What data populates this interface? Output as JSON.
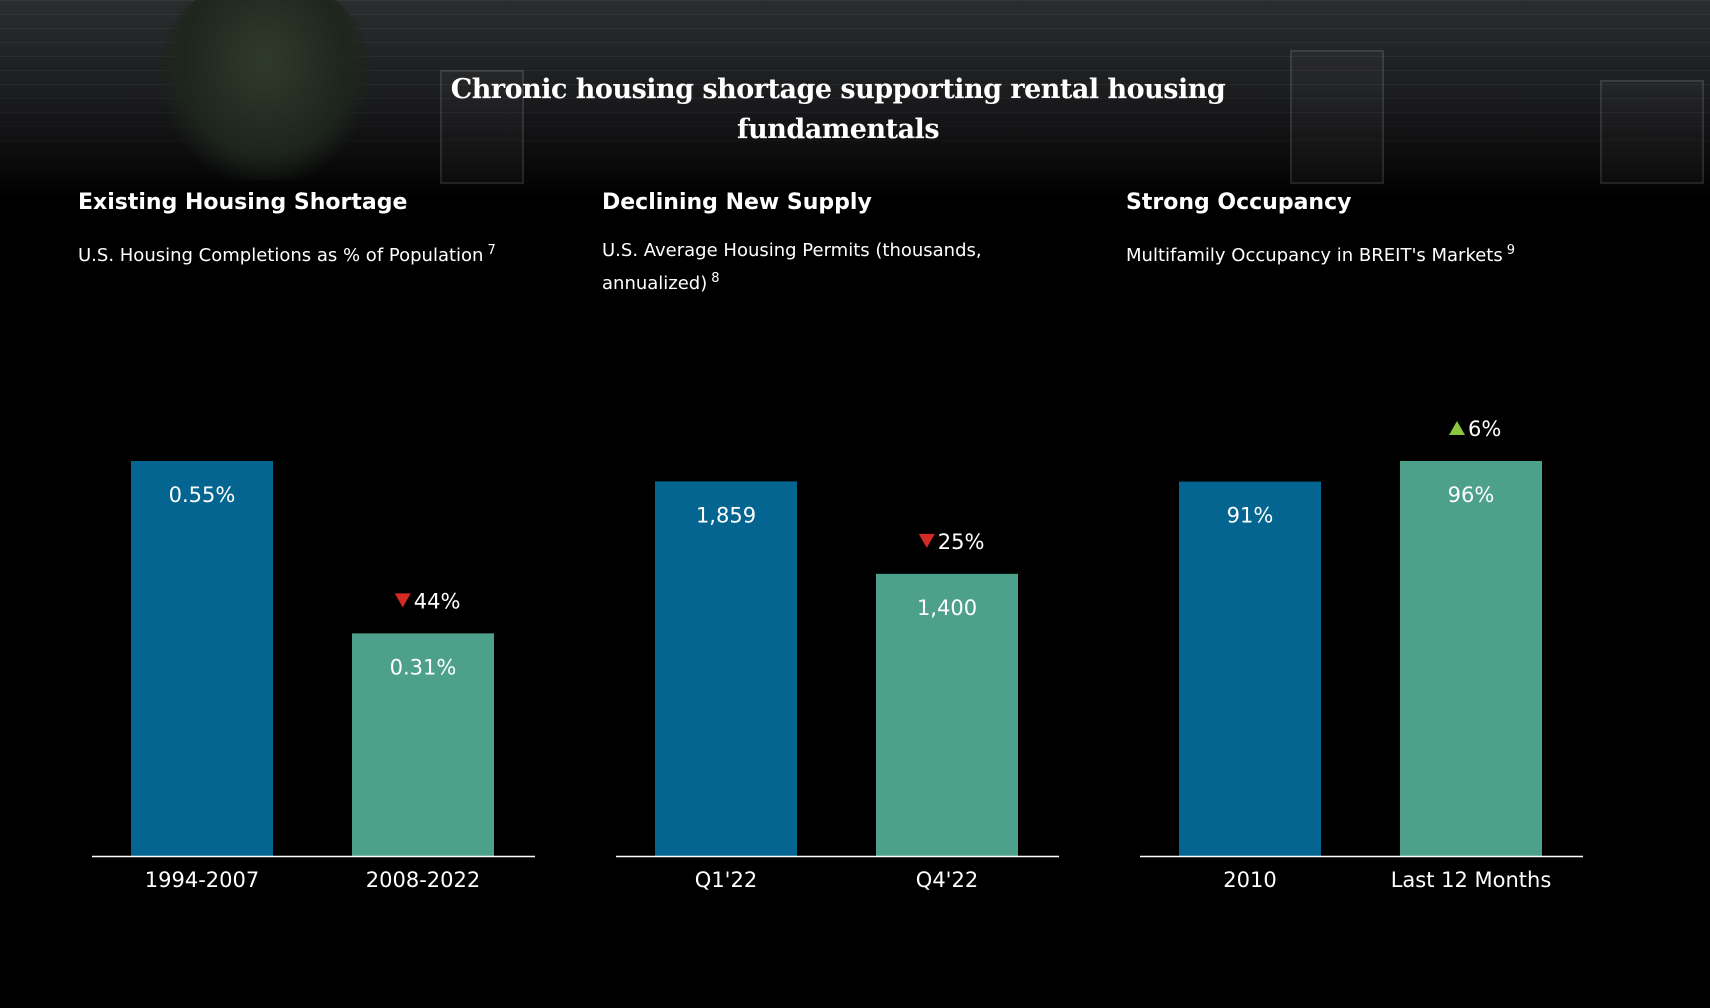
{
  "page": {
    "title_lines": [
      "Chronic housing shortage supporting rental housing",
      "fundamentals"
    ]
  },
  "colors": {
    "bar_first": "#046590",
    "bar_second": "#4da18c",
    "down_arrow": "#d62a25",
    "up_arrow": "#8cc63f",
    "axis": "#ffffff"
  },
  "panels": [
    {
      "heading": "Existing Housing Shortage",
      "subtitle": "U.S. Housing Completions as % of Population",
      "footnote": "7"
    },
    {
      "heading": "Declining New Supply",
      "subtitle": "U.S. Average Housing Permits (thousands, annualized)",
      "footnote": "8"
    },
    {
      "heading": "Strong Occupancy",
      "subtitle": "Multifamily Occupancy in BREIT's Markets",
      "footnote": "9"
    }
  ],
  "chart_data": [
    {
      "type": "bar",
      "title": "Existing Housing Shortage",
      "subtitle": "U.S. Housing Completions as % of Population",
      "categories": [
        "1994-2007",
        "2008-2022"
      ],
      "values": [
        0.55,
        0.31
      ],
      "value_labels": [
        "0.55%",
        "0.31%"
      ],
      "ylim": [
        0,
        0.55
      ],
      "change": {
        "direction": "down",
        "label": "44%"
      },
      "xlabel": "",
      "ylabel": "",
      "grid": false
    },
    {
      "type": "bar",
      "title": "Declining New Supply",
      "subtitle": "U.S. Average Housing Permits (thousands, annualized)",
      "categories": [
        "Q1'22",
        "Q4'22"
      ],
      "values": [
        1859,
        1400
      ],
      "value_labels": [
        "1,859",
        "1,400"
      ],
      "ylim": [
        0,
        1960
      ],
      "change": {
        "direction": "down",
        "label": "25%"
      },
      "xlabel": "",
      "ylabel": "",
      "grid": false
    },
    {
      "type": "bar",
      "title": "Strong Occupancy",
      "subtitle": "Multifamily Occupancy in BREIT's Markets",
      "categories": [
        "2010",
        "Last 12 Months"
      ],
      "values": [
        91,
        96
      ],
      "value_labels": [
        "91%",
        "96%"
      ],
      "ylim": [
        0,
        96
      ],
      "change": {
        "direction": "up",
        "label": "6%"
      },
      "xlabel": "",
      "ylabel": "",
      "grid": false
    }
  ]
}
